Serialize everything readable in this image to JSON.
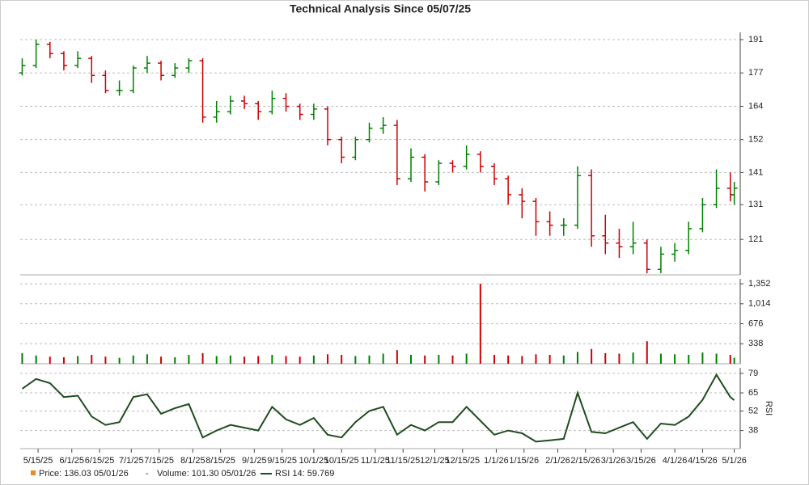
{
  "chart_data": [
    {
      "type": "ohlc",
      "title": "Technical Analysis Since 05/07/25",
      "log_scale": true,
      "grid": true,
      "up_color": "#008000",
      "down_color": "#cc0000",
      "legend_label": "Price: 136.03  05/01/26",
      "legend_color": "#e88a2a",
      "x": [
        "5/7/25",
        "5/14/25",
        "5/21/25",
        "5/28/25",
        "6/4/25",
        "6/11/25",
        "6/18/25",
        "6/25/25",
        "7/2/25",
        "7/9/25",
        "7/16/25",
        "7/23/25",
        "7/30/25",
        "8/6/25",
        "8/13/25",
        "8/20/25",
        "8/27/25",
        "9/3/25",
        "9/10/25",
        "9/17/25",
        "9/24/25",
        "10/1/25",
        "10/8/25",
        "10/15/25",
        "10/22/25",
        "10/29/25",
        "11/5/25",
        "11/12/25",
        "11/19/25",
        "11/26/25",
        "12/3/25",
        "12/10/25",
        "12/17/25",
        "12/24/25",
        "12/31/25",
        "1/7/26",
        "1/14/26",
        "1/21/26",
        "1/28/26",
        "2/4/26",
        "2/11/26",
        "2/18/26",
        "2/25/26",
        "3/4/26",
        "3/11/26",
        "3/18/26",
        "3/25/26",
        "4/1/26",
        "4/8/26",
        "4/15/26",
        "4/22/26",
        "4/29/26",
        "5/1/26"
      ],
      "ohlc": [
        [
          177,
          183,
          176,
          180
        ],
        [
          180,
          191,
          179,
          189
        ],
        [
          189,
          190,
          183,
          185
        ],
        [
          185,
          186,
          178,
          180
        ],
        [
          180,
          186,
          179,
          183
        ],
        [
          183,
          184,
          173,
          176
        ],
        [
          176,
          178,
          169,
          170
        ],
        [
          170,
          174,
          168,
          170
        ],
        [
          170,
          180,
          169,
          179
        ],
        [
          179,
          184,
          177,
          181
        ],
        [
          181,
          182,
          174,
          176
        ],
        [
          176,
          181,
          175,
          179
        ],
        [
          179,
          183,
          177,
          182
        ],
        [
          182,
          183,
          158,
          160
        ],
        [
          160,
          166,
          158,
          162
        ],
        [
          162,
          168,
          161,
          166
        ],
        [
          166,
          168,
          163,
          165
        ],
        [
          165,
          166,
          159,
          162
        ],
        [
          162,
          170,
          161,
          167
        ],
        [
          167,
          169,
          162,
          164
        ],
        [
          164,
          165,
          159,
          161
        ],
        [
          161,
          165,
          159,
          163
        ],
        [
          163,
          164,
          150,
          152
        ],
        [
          152,
          153,
          144,
          146
        ],
        [
          146,
          153,
          145,
          152
        ],
        [
          152,
          158,
          151,
          156
        ],
        [
          156,
          160,
          154,
          157
        ],
        [
          157,
          159,
          137,
          139
        ],
        [
          139,
          149,
          138,
          146
        ],
        [
          146,
          147,
          135,
          138
        ],
        [
          138,
          145,
          137,
          144
        ],
        [
          144,
          145,
          141,
          143
        ],
        [
          143,
          150,
          142,
          147
        ],
        [
          147,
          148,
          141,
          143
        ],
        [
          143,
          144,
          137,
          139
        ],
        [
          139,
          140,
          131,
          134
        ],
        [
          134,
          136,
          127,
          132
        ],
        [
          132,
          133,
          122,
          126
        ],
        [
          126,
          129,
          122,
          125
        ],
        [
          125,
          127,
          122,
          125
        ],
        [
          125,
          143,
          124,
          140
        ],
        [
          140,
          142,
          119,
          122
        ],
        [
          122,
          128,
          117,
          120
        ],
        [
          120,
          124,
          116,
          119
        ],
        [
          119,
          126,
          117,
          120
        ],
        [
          120,
          121,
          112,
          113
        ],
        [
          113,
          119,
          112,
          117
        ],
        [
          117,
          120,
          115,
          118
        ],
        [
          118,
          126,
          117,
          124
        ],
        [
          124,
          133,
          123,
          131
        ],
        [
          131,
          142,
          130,
          136
        ],
        [
          136,
          141,
          132,
          134
        ],
        [
          134,
          138,
          131,
          136.03
        ]
      ],
      "xlim": [
        "5/6/25",
        "5/4/26"
      ],
      "xticks": [
        "5/15/25",
        "6/1/25",
        "6/15/25",
        "7/1/25",
        "7/15/25",
        "8/1/25",
        "8/15/25",
        "9/1/25",
        "9/15/25",
        "10/1/25",
        "10/15/25",
        "11/1/25",
        "11/15/25",
        "12/1/25",
        "12/15/25",
        "1/1/26",
        "1/15/26",
        "2/1/26",
        "2/15/26",
        "3/1/26",
        "3/15/26",
        "4/1/26",
        "4/15/26",
        "5/1/26"
      ],
      "ylim": [
        111.6,
        194.2
      ],
      "yticks": [
        121,
        131,
        141,
        152,
        164,
        177,
        191
      ]
    },
    {
      "type": "volume",
      "grid": true,
      "legend_label": "Volume: 101.30  05/01/26",
      "legend_color": "#20a0a0",
      "values": [
        180,
        140,
        120,
        110,
        130,
        150,
        120,
        100,
        140,
        160,
        120,
        110,
        150,
        180,
        130,
        140,
        120,
        130,
        150,
        130,
        120,
        140,
        160,
        150,
        130,
        140,
        170,
        230,
        150,
        140,
        150,
        140,
        170,
        1352,
        150,
        140,
        130,
        160,
        150,
        140,
        200,
        250,
        180,
        170,
        190,
        380,
        170,
        160,
        150,
        190,
        170,
        150,
        101.3
      ],
      "ylim": [
        0,
        1435
      ],
      "yticks": [
        338,
        676,
        {
          "value": 1014,
          "label": "1,014"
        },
        {
          "value": 1352,
          "label": "1,352"
        }
      ]
    },
    {
      "type": "line",
      "ylabel": "RSI",
      "grid": true,
      "color": "#1e4d1e",
      "legend_label": "RSI 14: 59.769",
      "values": [
        68,
        75,
        72,
        62,
        63,
        48,
        42,
        44,
        62,
        64,
        50,
        54,
        57,
        33,
        38,
        42,
        40,
        38,
        55,
        46,
        42,
        47,
        35,
        33,
        44,
        52,
        55,
        35,
        42,
        38,
        44,
        44,
        55,
        45,
        35,
        38,
        36,
        30,
        31,
        32,
        65,
        37,
        36,
        40,
        44,
        32,
        43,
        42,
        48,
        60,
        78,
        62,
        59.769
      ],
      "ylim": [
        25,
        83
      ],
      "yticks": [
        38,
        52,
        65,
        79
      ]
    }
  ]
}
